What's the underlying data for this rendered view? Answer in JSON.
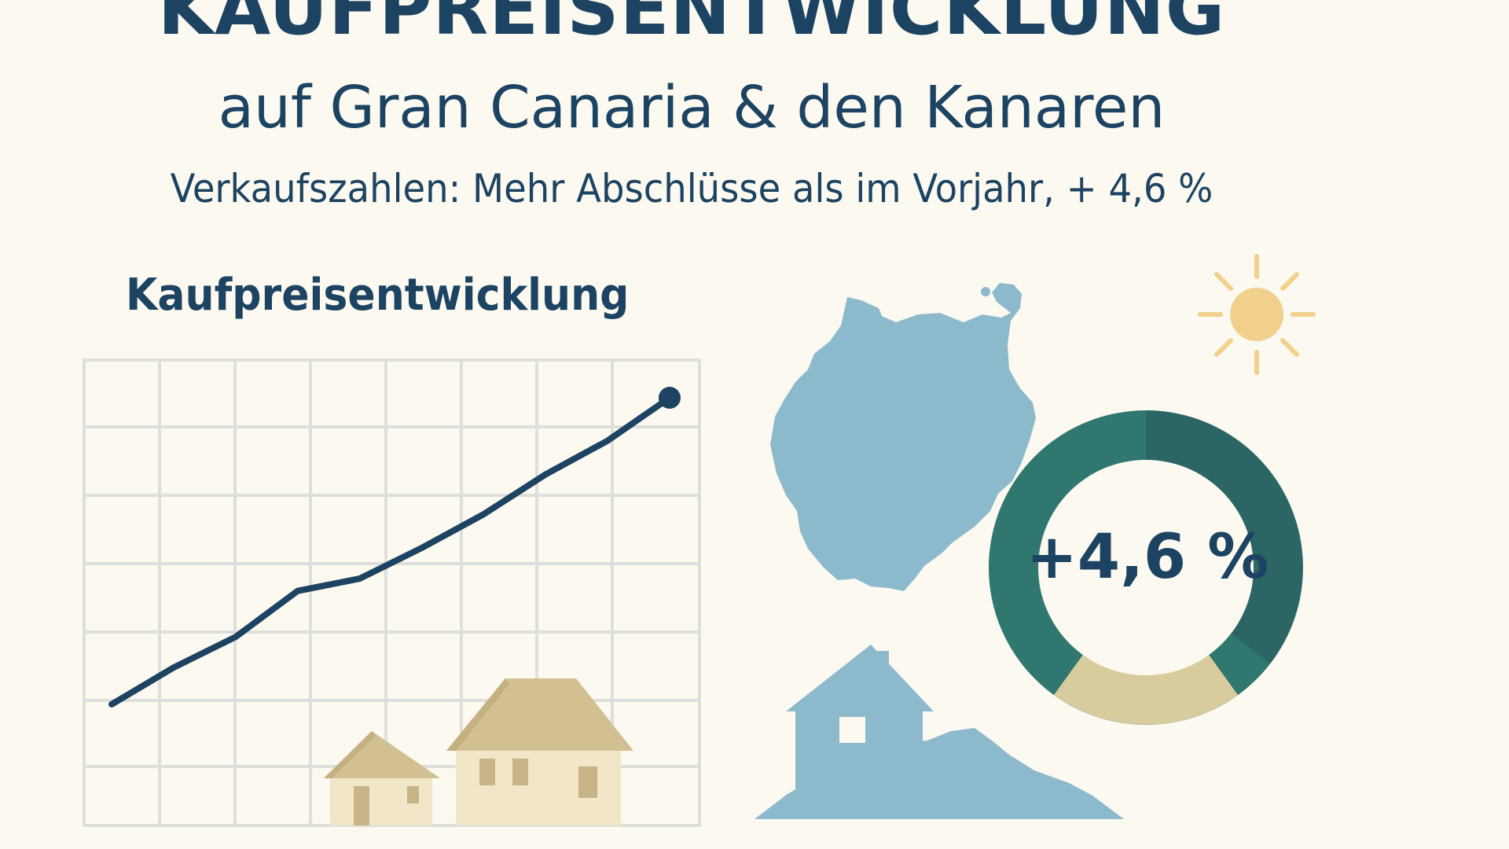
{
  "header": {
    "title": "KAUFPREISENTWICKLUNG",
    "subtitle": "auf Gran Canaria & den Kanaren",
    "tagline": "Verkaufszahlen: Mehr Abschlüsse als im Vorjahr, + 4,6 %"
  },
  "chart": {
    "heading": "Kaufpreisentwicklung",
    "line_color": "#1c4361",
    "trend": [
      0.0,
      0.12,
      0.22,
      0.37,
      0.41,
      0.51,
      0.62,
      0.75,
      0.86,
      1.0
    ]
  },
  "ring": {
    "label": "+4,6 %",
    "colors": {
      "main": "#2f776f",
      "dark": "#2b6664",
      "accent": "#d8cc9e"
    }
  },
  "icons": {
    "island": "gran-canaria-island-icon",
    "sun": "sun-icon",
    "house": "house-icon"
  },
  "colors": {
    "background": "#fcf9f0",
    "text": "#1c4361",
    "island": "#8db9cd",
    "house_roof": "#d2c093",
    "house_wall": "#f1e6c8",
    "sun": "#f1d08c",
    "grid": "#dededb"
  }
}
